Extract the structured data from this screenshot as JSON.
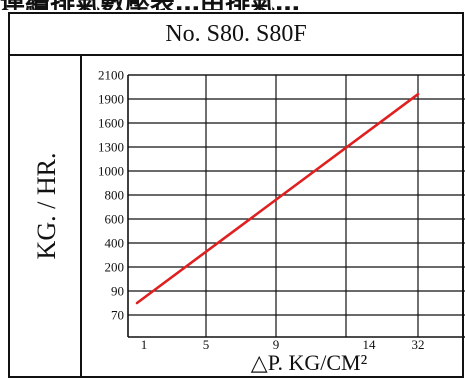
{
  "header_fragment": "連續排氣數壓表…由排氣…",
  "chart_data": {
    "type": "line",
    "title": "No. S80. S80F",
    "ylabel": "KG. / HR.",
    "xlabel": "△P.  KG/CM²",
    "y_ticks": [
      "2100",
      "1900",
      "1600",
      "1300",
      "1000",
      "800",
      "600",
      "400",
      "200",
      "90",
      "70"
    ],
    "x_ticks": [
      "1",
      "5",
      "9",
      "14",
      "32"
    ],
    "x_scale": "tick-index",
    "y_scale": "tick-index",
    "grid": true,
    "series": [
      {
        "color": "#e02020",
        "points": [
          {
            "x": 0.55,
            "y": 80
          },
          {
            "x": 32,
            "y": 1940
          }
        ]
      }
    ]
  }
}
